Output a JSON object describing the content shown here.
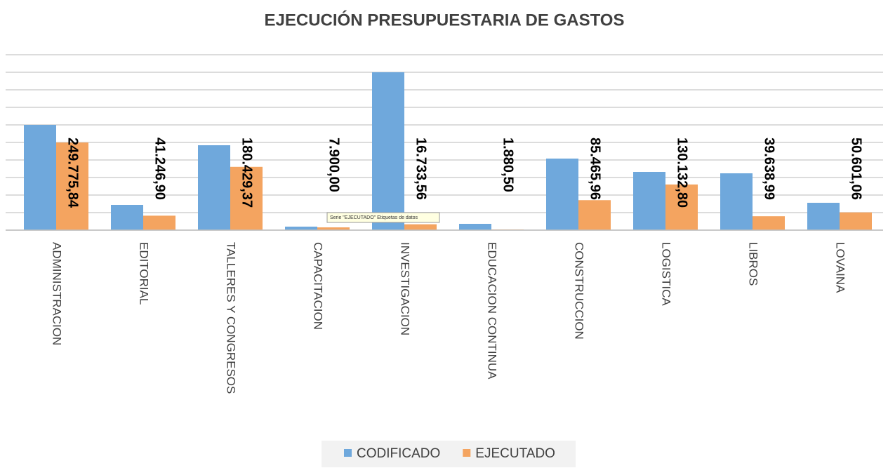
{
  "chart_data": {
    "type": "bar",
    "title": "EJECUCIÓN PRESUPUESTARIA DE GASTOS",
    "categories": [
      "ADMINISTRACION",
      "EDITORIAL",
      "TALLERES Y CONGRESOS",
      "CAPACITACION",
      "INVESTIGACION",
      "EDUCACION CONTINUA",
      "CONSTRUCCION",
      "LOGISTICA",
      "LIBROS",
      "LOVAINA"
    ],
    "series": [
      {
        "name": "CODIFICADO",
        "color": "#6fa8dc",
        "values": [
          300000,
          72000,
          242000,
          10000,
          450000,
          18000,
          204000,
          166000,
          162000,
          78000
        ]
      },
      {
        "name": "EJECUTADO",
        "color": "#f4a460",
        "values": [
          249775.84,
          41246.9,
          180429.37,
          7900,
          16733.56,
          1880.5,
          85465.96,
          130132.8,
          39638.99,
          50601.06
        ],
        "value_labels": [
          "249.775,84",
          "41.246,90",
          "180.429,37",
          "7.900,00",
          "16.733,56",
          "1.880,50",
          "85.465,96",
          "130.132,80",
          "39.638,99",
          "50.601,06"
        ]
      }
    ],
    "ylim": [
      0,
      500000
    ],
    "yticks": [
      0,
      50000,
      100000,
      150000,
      200000,
      250000,
      300000,
      350000,
      400000,
      450000,
      500000
    ],
    "grid": true,
    "legend": "bottom",
    "tooltip": "Serie \"EJECUTADO\" Etiquetas de datos"
  }
}
